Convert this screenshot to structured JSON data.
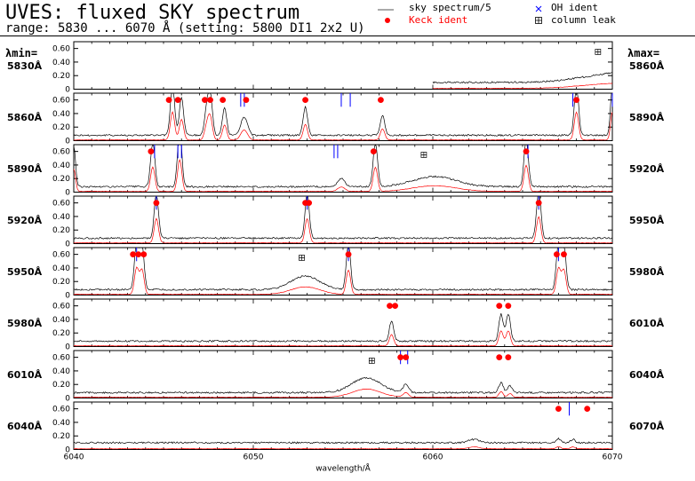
{
  "header": {
    "title": "UVES: fluxed SKY spectrum",
    "subtitle": "range: 5830 ... 6070 Å (setting: 5800 DI1 2x2 U)"
  },
  "legend": {
    "sky": "sky spectrum/5",
    "keck": "Keck ident",
    "oh": "OH ident",
    "leak": "column leak"
  },
  "side_labels": {
    "lambda_min": "λmin=",
    "lambda_max": "λmax="
  },
  "colors": {
    "spectrum": "#000000",
    "scaled": "#ff0000",
    "keck": "#ff0000",
    "oh": "#0000ff",
    "frame": "#000000"
  },
  "chart_data": {
    "type": "line",
    "xlabel": "wavelength/Å",
    "panel_span": 30,
    "ylim": [
      0,
      0.7
    ],
    "yticks": [
      "0",
      "0.20",
      "0.40",
      "0.60"
    ],
    "bottom_xticks": [
      6040,
      6050,
      6060,
      6070
    ],
    "bottom_xtick_labels": [
      "6040",
      "6050",
      "6060",
      "6070"
    ],
    "panels": [
      {
        "min": 5830,
        "max": 5860,
        "min_label": "5830Å",
        "max_label": "5860Å",
        "data_start": 5850,
        "base": 0.1,
        "peaks": [
          [
            5860.5,
            0.14,
            2.0
          ]
        ],
        "keck": [],
        "oh": [],
        "leaks": [
          5859.2
        ]
      },
      {
        "min": 5860,
        "max": 5890,
        "min_label": "5860Å",
        "max_label": "5890Å",
        "data_start": 5860,
        "base": 0.08,
        "peaks": [
          [
            5865.5,
            0.75,
            0.12
          ],
          [
            5866.0,
            0.55,
            0.12
          ],
          [
            5867.4,
            0.35,
            0.12
          ],
          [
            5867.6,
            0.6,
            0.12
          ],
          [
            5868.4,
            0.4,
            0.12
          ],
          [
            5869.4,
            0.18,
            0.15
          ],
          [
            5869.6,
            0.15,
            0.15
          ],
          [
            5872.9,
            0.42,
            0.12
          ],
          [
            5877.2,
            0.3,
            0.12
          ],
          [
            5888.0,
            0.75,
            0.12
          ],
          [
            5890.0,
            0.75,
            0.1
          ]
        ],
        "keck": [
          [
            5865.3,
            0.6
          ],
          [
            5865.8,
            0.6
          ],
          [
            5867.3,
            0.6
          ],
          [
            5867.6,
            0.6
          ],
          [
            5868.3,
            0.6
          ],
          [
            5869.6,
            0.6
          ],
          [
            5872.9,
            0.6
          ],
          [
            5877.1,
            0.6
          ],
          [
            5888.0,
            0.6
          ]
        ],
        "oh": [
          5869.3,
          5869.5,
          5874.9,
          5875.4,
          5887.8,
          5890.0
        ],
        "leaks": []
      },
      {
        "min": 5890,
        "max": 5920,
        "min_label": "5890Å",
        "max_label": "5920Å",
        "data_start": 5890,
        "base": 0.08,
        "peaks": [
          [
            5890.0,
            0.6,
            0.1
          ],
          [
            5894.4,
            0.65,
            0.12
          ],
          [
            5895.9,
            0.85,
            0.12
          ],
          [
            5904.9,
            0.12,
            0.2
          ],
          [
            5906.8,
            0.65,
            0.12
          ],
          [
            5910.1,
            0.15,
            1.2
          ],
          [
            5915.2,
            0.7,
            0.12
          ]
        ],
        "keck": [
          [
            5894.3,
            0.6
          ],
          [
            5906.7,
            0.6
          ],
          [
            5915.2,
            0.6
          ]
        ],
        "oh": [
          5894.5,
          5895.8,
          5896.0,
          5904.5,
          5904.7,
          5915.3
        ],
        "leaks": [
          5909.5
        ]
      },
      {
        "min": 5920,
        "max": 5950,
        "min_label": "5920Å",
        "max_label": "5950Å",
        "data_start": 5920,
        "base": 0.08,
        "peaks": [
          [
            5924.6,
            0.65,
            0.12
          ],
          [
            5933.0,
            0.65,
            0.12
          ],
          [
            5945.9,
            0.7,
            0.12
          ]
        ],
        "keck": [
          [
            5924.6,
            0.6
          ],
          [
            5932.9,
            0.6
          ],
          [
            5933.1,
            0.6
          ],
          [
            5945.9,
            0.6
          ]
        ],
        "oh": [
          5924.6,
          5933.0,
          5945.9
        ],
        "leaks": []
      },
      {
        "min": 5950,
        "max": 5980,
        "min_label": "5950Å",
        "max_label": "5980Å",
        "data_start": 5950,
        "base": 0.08,
        "peaks": [
          [
            5953.5,
            0.7,
            0.12
          ],
          [
            5953.8,
            0.65,
            0.12
          ],
          [
            5962.9,
            0.2,
            0.8
          ],
          [
            5965.3,
            0.65,
            0.12
          ],
          [
            5977.0,
            0.7,
            0.12
          ],
          [
            5977.3,
            0.65,
            0.12
          ]
        ],
        "keck": [
          [
            5953.3,
            0.6
          ],
          [
            5953.6,
            0.6
          ],
          [
            5953.9,
            0.6
          ],
          [
            5965.3,
            0.6
          ],
          [
            5976.9,
            0.6
          ],
          [
            5977.3,
            0.6
          ]
        ],
        "oh": [
          5953.5,
          5965.3,
          5977.0
        ],
        "leaks": [
          5962.7
        ]
      },
      {
        "min": 5980,
        "max": 6010,
        "min_label": "5980Å",
        "max_label": "6010Å",
        "data_start": 5980,
        "base": 0.08,
        "peaks": [
          [
            5997.7,
            0.3,
            0.12
          ],
          [
            6003.8,
            0.4,
            0.12
          ],
          [
            6004.2,
            0.4,
            0.12
          ]
        ],
        "keck": [
          [
            5997.6,
            0.6
          ],
          [
            5997.9,
            0.6
          ],
          [
            6003.7,
            0.6
          ],
          [
            6004.2,
            0.6
          ]
        ],
        "oh": [],
        "leaks": []
      },
      {
        "min": 6010,
        "max": 6040,
        "min_label": "6010Å",
        "max_label": "6040Å",
        "data_start": 6010,
        "base": 0.08,
        "peaks": [
          [
            6026.3,
            0.22,
            0.8
          ],
          [
            6028.5,
            0.12,
            0.15
          ],
          [
            6033.8,
            0.15,
            0.12
          ],
          [
            6034.3,
            0.1,
            0.12
          ]
        ],
        "keck": [
          [
            6028.2,
            0.6
          ],
          [
            6028.5,
            0.6
          ],
          [
            6033.7,
            0.6
          ],
          [
            6034.2,
            0.6
          ]
        ],
        "oh": [
          6028.2,
          6028.6
        ],
        "leaks": [
          6026.6
        ]
      },
      {
        "min": 6040,
        "max": 6070,
        "min_label": "6040Å",
        "max_label": "6070Å",
        "data_start": 6040,
        "base": 0.1,
        "peaks": [
          [
            6062.3,
            0.05,
            0.3
          ],
          [
            6067.0,
            0.06,
            0.12
          ],
          [
            6067.8,
            0.05,
            0.12
          ]
        ],
        "keck": [
          [
            6067.0,
            0.6
          ],
          [
            6068.6,
            0.6
          ]
        ],
        "oh": [
          6067.6
        ],
        "leaks": []
      }
    ]
  }
}
